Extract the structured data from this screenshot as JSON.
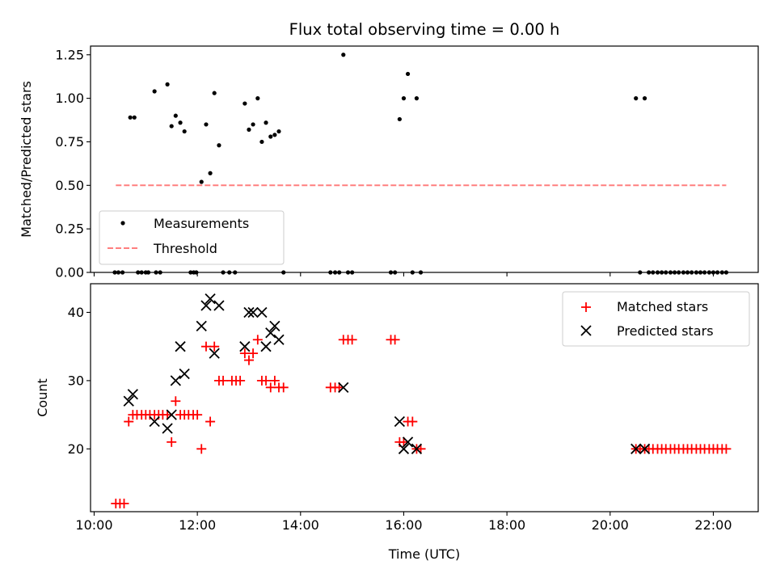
{
  "chart_data": [
    {
      "type": "scatter",
      "title": "Flux total observing time = 0.00 h",
      "xlabel": "",
      "ylabel": "Matched/Predicted stars",
      "ylim": [
        0.0,
        1.3
      ],
      "xlim": [
        9.93,
        22.87
      ],
      "yticks": [
        0.0,
        0.25,
        0.5,
        0.75,
        1.0,
        1.25
      ],
      "ytick_labels": [
        "0.00",
        "0.25",
        "0.50",
        "0.75",
        "1.00",
        "1.25"
      ],
      "legend_position": "lower-left",
      "series": [
        {
          "name": "Measurements",
          "kind": "points",
          "color": "#000000",
          "points": [
            [
              10.4,
              0.0
            ],
            [
              10.47,
              0.0
            ],
            [
              10.55,
              0.0
            ],
            [
              10.7,
              0.89
            ],
            [
              10.78,
              0.89
            ],
            [
              10.85,
              0.0
            ],
            [
              10.92,
              0.0
            ],
            [
              11.0,
              0.0
            ],
            [
              11.05,
              0.0
            ],
            [
              11.17,
              1.04
            ],
            [
              11.2,
              0.0
            ],
            [
              11.28,
              0.0
            ],
            [
              11.42,
              1.08
            ],
            [
              11.5,
              0.84
            ],
            [
              11.58,
              0.9
            ],
            [
              11.67,
              0.86
            ],
            [
              11.75,
              0.81
            ],
            [
              11.87,
              0.0
            ],
            [
              11.93,
              0.0
            ],
            [
              11.98,
              0.0
            ],
            [
              12.08,
              0.52
            ],
            [
              12.17,
              0.85
            ],
            [
              12.25,
              0.57
            ],
            [
              12.33,
              1.03
            ],
            [
              12.42,
              0.73
            ],
            [
              12.5,
              0.0
            ],
            [
              12.62,
              0.0
            ],
            [
              12.73,
              0.0
            ],
            [
              12.92,
              0.97
            ],
            [
              13.0,
              0.82
            ],
            [
              13.08,
              0.85
            ],
            [
              13.17,
              1.0
            ],
            [
              13.25,
              0.75
            ],
            [
              13.33,
              0.86
            ],
            [
              13.42,
              0.78
            ],
            [
              13.5,
              0.79
            ],
            [
              13.58,
              0.81
            ],
            [
              13.67,
              0.0
            ],
            [
              14.58,
              0.0
            ],
            [
              14.67,
              0.0
            ],
            [
              14.75,
              0.0
            ],
            [
              14.83,
              1.25
            ],
            [
              14.92,
              0.0
            ],
            [
              15.0,
              0.0
            ],
            [
              15.75,
              0.0
            ],
            [
              15.83,
              0.0
            ],
            [
              15.92,
              0.88
            ],
            [
              16.0,
              1.0
            ],
            [
              16.08,
              1.14
            ],
            [
              16.17,
              0.0
            ],
            [
              16.25,
              1.0
            ],
            [
              16.33,
              0.0
            ],
            [
              20.5,
              1.0
            ],
            [
              20.58,
              0.0
            ],
            [
              20.67,
              1.0
            ],
            [
              20.75,
              0.0
            ],
            [
              20.83,
              0.0
            ],
            [
              20.92,
              0.0
            ],
            [
              21.0,
              0.0
            ],
            [
              21.08,
              0.0
            ],
            [
              21.17,
              0.0
            ],
            [
              21.25,
              0.0
            ],
            [
              21.33,
              0.0
            ],
            [
              21.42,
              0.0
            ],
            [
              21.5,
              0.0
            ],
            [
              21.58,
              0.0
            ],
            [
              21.67,
              0.0
            ],
            [
              21.75,
              0.0
            ],
            [
              21.83,
              0.0
            ],
            [
              21.92,
              0.0
            ],
            [
              22.0,
              0.0
            ],
            [
              22.08,
              0.0
            ],
            [
              22.17,
              0.0
            ],
            [
              22.25,
              0.0
            ]
          ]
        },
        {
          "name": "Threshold",
          "kind": "dashed-line",
          "color": "#ff7f7f",
          "points": [
            [
              10.42,
              0.5
            ],
            [
              22.25,
              0.5
            ]
          ]
        }
      ]
    },
    {
      "type": "scatter",
      "title": "",
      "xlabel": "Time (UTC)",
      "ylabel": "Count",
      "ylim": [
        10.8,
        44.2
      ],
      "xlim": [
        9.93,
        22.87
      ],
      "yticks": [
        20,
        30,
        40
      ],
      "ytick_labels": [
        "20",
        "30",
        "40"
      ],
      "xticks": [
        10,
        12,
        14,
        16,
        18,
        20,
        22
      ],
      "xtick_labels": [
        "10:00",
        "12:00",
        "14:00",
        "16:00",
        "18:00",
        "20:00",
        "22:00"
      ],
      "legend_position": "top-right",
      "series": [
        {
          "name": "Matched stars",
          "kind": "plus",
          "color": "#ff0000",
          "points": [
            [
              10.42,
              12
            ],
            [
              10.5,
              12
            ],
            [
              10.58,
              12
            ],
            [
              10.67,
              24
            ],
            [
              10.75,
              25
            ],
            [
              10.83,
              25
            ],
            [
              10.92,
              25
            ],
            [
              11.0,
              25
            ],
            [
              11.08,
              25
            ],
            [
              11.17,
              25
            ],
            [
              11.25,
              25
            ],
            [
              11.33,
              25
            ],
            [
              11.42,
              25
            ],
            [
              11.5,
              21
            ],
            [
              11.58,
              27
            ],
            [
              11.67,
              25
            ],
            [
              11.75,
              25
            ],
            [
              11.83,
              25
            ],
            [
              11.92,
              25
            ],
            [
              12.0,
              25
            ],
            [
              12.08,
              20
            ],
            [
              12.17,
              35
            ],
            [
              12.25,
              24
            ],
            [
              12.33,
              35
            ],
            [
              12.42,
              30
            ],
            [
              12.5,
              30
            ],
            [
              12.67,
              30
            ],
            [
              12.75,
              30
            ],
            [
              12.83,
              30
            ],
            [
              12.92,
              34
            ],
            [
              13.0,
              33
            ],
            [
              13.08,
              34
            ],
            [
              13.17,
              36
            ],
            [
              13.25,
              30
            ],
            [
              13.33,
              30
            ],
            [
              13.42,
              29
            ],
            [
              13.5,
              30
            ],
            [
              13.58,
              29
            ],
            [
              13.67,
              29
            ],
            [
              14.58,
              29
            ],
            [
              14.67,
              29
            ],
            [
              14.75,
              29
            ],
            [
              14.83,
              36
            ],
            [
              14.92,
              36
            ],
            [
              15.0,
              36
            ],
            [
              15.75,
              36
            ],
            [
              15.83,
              36
            ],
            [
              15.92,
              21
            ],
            [
              16.0,
              21
            ],
            [
              16.08,
              24
            ],
            [
              16.17,
              24
            ],
            [
              16.25,
              20
            ],
            [
              16.33,
              20
            ],
            [
              20.5,
              20
            ],
            [
              20.58,
              20
            ],
            [
              20.67,
              20
            ],
            [
              20.75,
              20
            ],
            [
              20.83,
              20
            ],
            [
              20.92,
              20
            ],
            [
              21.0,
              20
            ],
            [
              21.08,
              20
            ],
            [
              21.17,
              20
            ],
            [
              21.25,
              20
            ],
            [
              21.33,
              20
            ],
            [
              21.42,
              20
            ],
            [
              21.5,
              20
            ],
            [
              21.58,
              20
            ],
            [
              21.67,
              20
            ],
            [
              21.75,
              20
            ],
            [
              21.83,
              20
            ],
            [
              21.92,
              20
            ],
            [
              22.0,
              20
            ],
            [
              22.08,
              20
            ],
            [
              22.17,
              20
            ],
            [
              22.25,
              20
            ]
          ]
        },
        {
          "name": "Predicted stars",
          "kind": "x",
          "color": "#000000",
          "points": [
            [
              10.67,
              27
            ],
            [
              10.75,
              28
            ],
            [
              11.17,
              24
            ],
            [
              11.42,
              23
            ],
            [
              11.5,
              25
            ],
            [
              11.58,
              30
            ],
            [
              11.67,
              35
            ],
            [
              11.75,
              31
            ],
            [
              12.08,
              38
            ],
            [
              12.17,
              41
            ],
            [
              12.25,
              42
            ],
            [
              12.33,
              34
            ],
            [
              12.42,
              41
            ],
            [
              12.92,
              35
            ],
            [
              13.0,
              40
            ],
            [
              13.08,
              40
            ],
            [
              13.25,
              40
            ],
            [
              13.33,
              35
            ],
            [
              13.42,
              37
            ],
            [
              13.5,
              38
            ],
            [
              13.58,
              36
            ],
            [
              14.83,
              29
            ],
            [
              15.92,
              24
            ],
            [
              16.0,
              20
            ],
            [
              16.08,
              21
            ],
            [
              16.25,
              20
            ],
            [
              20.5,
              20
            ],
            [
              20.67,
              20
            ]
          ]
        }
      ]
    }
  ]
}
